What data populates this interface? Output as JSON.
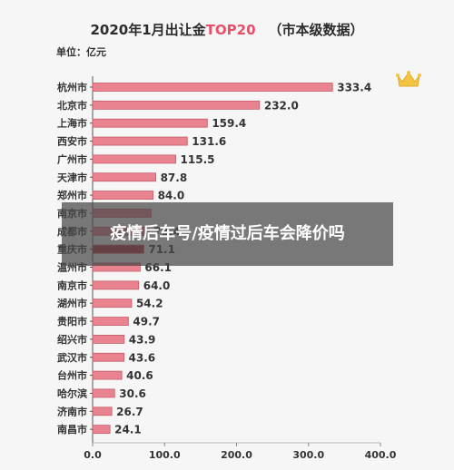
{
  "chart_data": {
    "type": "bar",
    "orientation": "horizontal",
    "title_main": "2020年1月出让金",
    "title_highlight": "TOP20",
    "title_suffix": "（市本级数据）",
    "unit_label": "单位：亿元",
    "categories": [
      "杭州市",
      "北京市",
      "上海市",
      "西安市",
      "广州市",
      "天津市",
      "郑州市",
      "南京市",
      "成都市",
      "重庆市",
      "温州市",
      "南京市",
      "湖州市",
      "贵阳市",
      "绍兴市",
      "武汉市",
      "台州市",
      "哈尔滨",
      "济南市",
      "南昌市"
    ],
    "values": [
      333.4,
      232.0,
      159.4,
      131.6,
      115.5,
      87.8,
      84.0,
      81.2,
      78.4,
      71.1,
      66.1,
      64.0,
      54.2,
      49.7,
      43.9,
      43.6,
      40.6,
      30.6,
      26.7,
      24.1
    ],
    "value_labels": [
      "333.4",
      "232.0",
      "159.4",
      "131.6",
      "115.5",
      "87.8",
      "84.0",
      "",
      "78.4",
      "71.1",
      "66.1",
      "64.0",
      "54.2",
      "49.7",
      "43.9",
      "43.6",
      "40.6",
      "30.6",
      "26.7",
      "24.1"
    ],
    "xlim": [
      0,
      400
    ],
    "xticks": [
      "0.0",
      "100.0",
      "200.0",
      "300.0",
      "400.0"
    ],
    "grid": false,
    "bar_color": "#e8838f",
    "bar_edge_color": "#c75a68",
    "highlight_category": "重庆市",
    "highlight_color": "#b3303f"
  },
  "crown_icon": "crown-icon",
  "overlay": {
    "text": "疫情后车号/疫情过后车会降价吗"
  }
}
